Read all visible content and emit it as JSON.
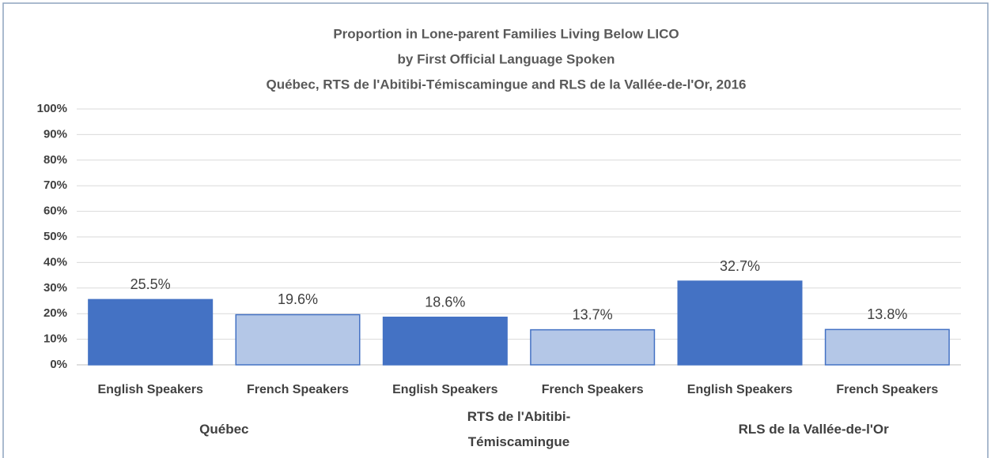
{
  "chart_data": {
    "type": "bar",
    "title_lines": [
      "Proportion in Lone-parent Families Living Below LICO",
      "by First Official Language Spoken",
      "Québec, RTS de l'Abitibi-Témiscamingue and RLS de la Vallée-de-l'Or, 2016"
    ],
    "categories": [
      "English Speakers",
      "French Speakers",
      "English Speakers",
      "French Speakers",
      "English Speakers",
      "French Speakers"
    ],
    "groups": [
      "Québec",
      "RTS de l'Abitibi-Témiscamingue",
      "RLS de la Vallée-de-l'Or"
    ],
    "values": [
      25.5,
      19.6,
      18.6,
      13.7,
      32.7,
      13.8
    ],
    "value_labels": [
      "25.5%",
      "19.6%",
      "18.6%",
      "13.7%",
      "32.7%",
      "13.8%"
    ],
    "colors": [
      "#4472c4",
      "#b4c7e7",
      "#4472c4",
      "#b4c7e7",
      "#4472c4",
      "#b4c7e7"
    ],
    "edgecolor": "#4472c4",
    "ylim": [
      0,
      100
    ],
    "yticks": [
      {
        "value": 0,
        "label": "0%"
      },
      {
        "value": 10,
        "label": "10%"
      },
      {
        "value": 20,
        "label": "20%"
      },
      {
        "value": 30,
        "label": "30%"
      },
      {
        "value": 40,
        "label": "40%"
      },
      {
        "value": 50,
        "label": "50%"
      },
      {
        "value": 60,
        "label": "60%"
      },
      {
        "value": 70,
        "label": "70%"
      },
      {
        "value": 80,
        "label": "80%"
      },
      {
        "value": 90,
        "label": "90%"
      },
      {
        "value": 100,
        "label": "100%"
      }
    ],
    "grid": true
  }
}
